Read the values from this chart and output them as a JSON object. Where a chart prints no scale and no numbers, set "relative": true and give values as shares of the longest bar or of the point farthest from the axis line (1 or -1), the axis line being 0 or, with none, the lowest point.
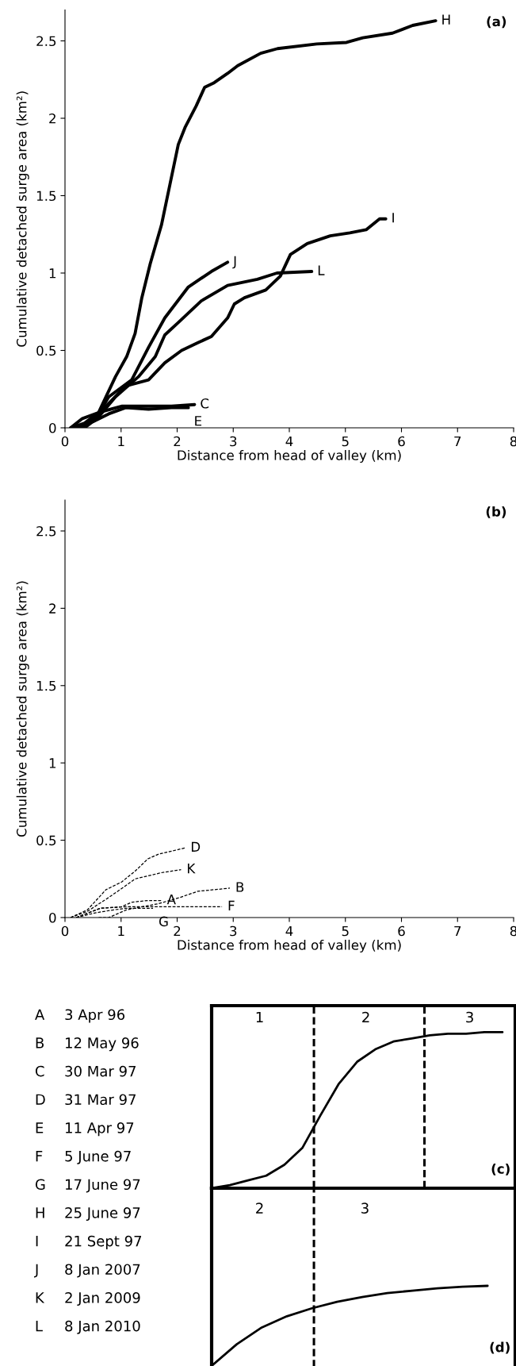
{
  "chart_data": [
    {
      "type": "line",
      "title": "(a)",
      "xlabel": "Distance from head of valley (km)",
      "ylabel": "Cumulative detached surge area (km²)",
      "xlim": [
        0,
        8
      ],
      "xticks": [
        0,
        1,
        2,
        3,
        4,
        5,
        6,
        7,
        8
      ],
      "ylim": [
        0,
        2.7
      ],
      "yticks": [
        0,
        0.5,
        1,
        1.5,
        2,
        2.5
      ],
      "grid": false,
      "legend": false,
      "marker": "none",
      "line_style": "solid",
      "series": [
        {
          "name": "H",
          "color": "#000000",
          "x": [
            0.1,
            0.35,
            0.6,
            0.9,
            1.1,
            1.25,
            1.37,
            1.52,
            1.72,
            1.87,
            2.02,
            2.14,
            2.34,
            2.49,
            2.66,
            2.9,
            3.08,
            3.49,
            3.79,
            4.49,
            5.02,
            5.31,
            5.84,
            6.2,
            6.61
          ],
          "values": [
            0,
            0.03,
            0.1,
            0.33,
            0.46,
            0.61,
            0.84,
            1.06,
            1.31,
            1.57,
            1.83,
            1.94,
            2.08,
            2.2,
            2.23,
            2.29,
            2.34,
            2.42,
            2.45,
            2.48,
            2.49,
            2.52,
            2.55,
            2.6,
            2.63
          ]
        },
        {
          "name": "I",
          "color": "#000000",
          "x": [
            0.4,
            0.6,
            1.08,
            1.49,
            1.78,
            2.08,
            2.37,
            2.61,
            2.9,
            3.02,
            3.2,
            3.58,
            3.84,
            4.02,
            4.32,
            4.73,
            5.08,
            5.37,
            5.61,
            5.72
          ],
          "values": [
            0.02,
            0.09,
            0.27,
            0.31,
            0.42,
            0.5,
            0.55,
            0.59,
            0.71,
            0.8,
            0.84,
            0.89,
            0.98,
            1.12,
            1.19,
            1.24,
            1.26,
            1.28,
            1.35,
            1.35
          ]
        },
        {
          "name": "J",
          "color": "#000000",
          "x": [
            0.3,
            0.55,
            0.78,
            1.19,
            1.49,
            1.78,
            2.2,
            2.61,
            2.9
          ],
          "values": [
            0,
            0.06,
            0.2,
            0.31,
            0.52,
            0.71,
            0.91,
            1.01,
            1.07
          ]
        },
        {
          "name": "L",
          "color": "#000000",
          "x": [
            0.35,
            0.6,
            0.9,
            1.31,
            1.61,
            1.78,
            2.02,
            2.43,
            2.9,
            3.43,
            3.78,
            4.4
          ],
          "values": [
            0,
            0.07,
            0.2,
            0.33,
            0.46,
            0.6,
            0.68,
            0.82,
            0.92,
            0.96,
            1.0,
            1.01
          ]
        },
        {
          "name": "C",
          "color": "#000000",
          "x": [
            0.1,
            0.31,
            0.61,
            1.02,
            1.49,
            1.9,
            2.31
          ],
          "values": [
            0,
            0.06,
            0.1,
            0.14,
            0.14,
            0.14,
            0.15
          ]
        },
        {
          "name": "E",
          "color": "#000000",
          "x": [
            0.2,
            0.5,
            0.78,
            1.08,
            1.49,
            1.9,
            2.2
          ],
          "values": [
            0,
            0.04,
            0.09,
            0.13,
            0.12,
            0.13,
            0.13
          ]
        }
      ]
    },
    {
      "type": "line",
      "title": "(b)",
      "xlabel": "Distance from head of valley (km)",
      "ylabel": "Cumulative detached surge area (km²)",
      "xlim": [
        0,
        8
      ],
      "xticks": [
        0,
        1,
        2,
        3,
        4,
        5,
        6,
        7,
        8
      ],
      "ylim": [
        0,
        2.7
      ],
      "yticks": [
        0,
        0.5,
        1,
        1.5,
        2,
        2.5
      ],
      "grid": false,
      "legend": false,
      "marker": "none",
      "line_style": "dashed",
      "series": [
        {
          "name": "D",
          "color": "#000000",
          "x": [
            0.1,
            0.4,
            0.73,
            1.01,
            1.25,
            1.48,
            1.67,
            2.14
          ],
          "values": [
            0,
            0.05,
            0.18,
            0.23,
            0.3,
            0.38,
            0.41,
            0.45
          ]
        },
        {
          "name": "K",
          "color": "#000000",
          "x": [
            0.1,
            0.4,
            0.78,
            1.06,
            1.25,
            1.72,
            2.07
          ],
          "values": [
            0,
            0.04,
            0.13,
            0.2,
            0.25,
            0.29,
            0.31
          ]
        },
        {
          "name": "A",
          "color": "#000000",
          "x": [
            0.2,
            0.63,
            1.01,
            1.2,
            1.48,
            1.72
          ],
          "values": [
            0,
            0.06,
            0.07,
            0.1,
            0.11,
            0.11
          ]
        },
        {
          "name": "B",
          "color": "#000000",
          "x": [
            0.6,
            0.78,
            1.1,
            1.67,
            2.05,
            2.37,
            2.94
          ],
          "values": [
            0,
            0,
            0.05,
            0.09,
            0.13,
            0.17,
            0.19
          ]
        },
        {
          "name": "F",
          "color": "#000000",
          "x": [
            0.2,
            0.63,
            1.1,
            1.67,
            2.8
          ],
          "values": [
            0,
            0.06,
            0.07,
            0.07,
            0.07
          ]
        },
        {
          "name": "G",
          "color": "#000000",
          "x": [
            0.2,
            0.54,
            0.87,
            1.1,
            1.57
          ],
          "values": [
            0,
            0.03,
            0.05,
            0.06,
            0.06
          ]
        }
      ]
    },
    {
      "type": "other",
      "annotations": [
        "A 3 Apr 96",
        "B 12 May 96",
        "C 30 Mar 97",
        "D 31 Mar 97",
        "E 11 Apr 97",
        "F 5 June 97",
        "G 17 June 97",
        "H 25 June 97",
        "I 21 Sept 97",
        "J 8 Jan 2007",
        "K 2 Jan 2009",
        "L 8 Jan 2010"
      ]
    },
    {
      "type": "line",
      "title": "(c)",
      "relative": true,
      "marker": "none",
      "line_style": "solid",
      "categories": [
        null,
        null,
        null,
        null,
        null,
        null,
        null,
        null,
        null,
        null,
        null,
        null,
        null,
        null,
        null,
        null,
        null
      ],
      "series": [
        {
          "color": "#000000",
          "values": [
            0,
            0.02,
            0.05,
            0.08,
            0.15,
            0.26,
            0.47,
            0.67,
            0.81,
            0.89,
            0.94,
            0.96,
            0.98,
            0.99,
            0.99,
            1,
            1
          ]
        }
      ],
      "annotations": [
        "1",
        "2",
        "3"
      ]
    },
    {
      "type": "line",
      "title": "(d)",
      "relative": true,
      "marker": "none",
      "line_style": "solid",
      "categories": [
        null,
        null,
        null,
        null,
        null,
        null,
        null,
        null,
        null,
        null,
        null,
        null
      ],
      "series": [
        {
          "color": "#000000",
          "values": [
            0,
            0.27,
            0.48,
            0.62,
            0.72,
            0.8,
            0.86,
            0.91,
            0.94,
            0.97,
            0.99,
            1
          ]
        }
      ],
      "annotations": [
        "2",
        "3"
      ]
    }
  ]
}
